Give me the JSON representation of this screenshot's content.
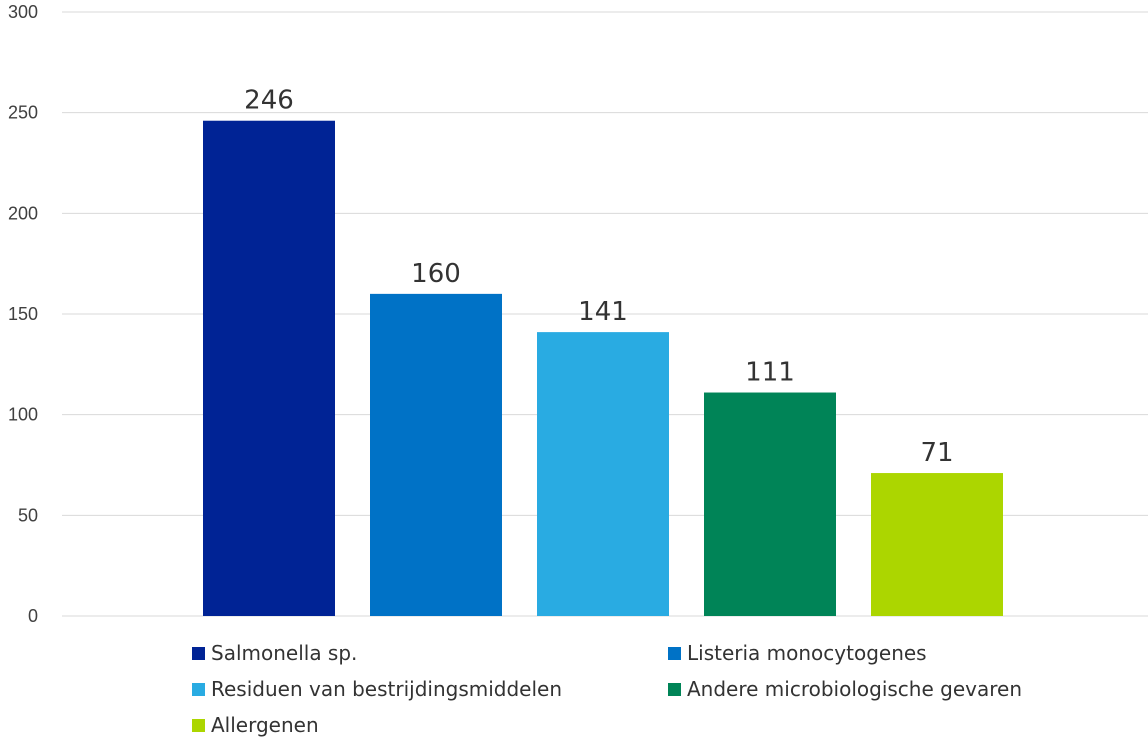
{
  "chart_data": {
    "type": "bar",
    "categories": [
      "Salmonella sp.",
      "Listeria monocytogenes",
      "Residuen van bestrijdingsmiddelen",
      "Andere microbiologische gevaren",
      "Allergenen"
    ],
    "values": [
      246,
      160,
      141,
      111,
      71
    ],
    "colors": [
      "#002395",
      "#0072c6",
      "#29abe2",
      "#008457",
      "#acd600"
    ],
    "ylim": [
      0,
      300
    ],
    "yticks": [
      "0",
      "50",
      "100",
      "150",
      "200",
      "250",
      "300"
    ],
    "grid": true,
    "legend_position": "bottom",
    "title": "",
    "xlabel": "",
    "ylabel": ""
  }
}
